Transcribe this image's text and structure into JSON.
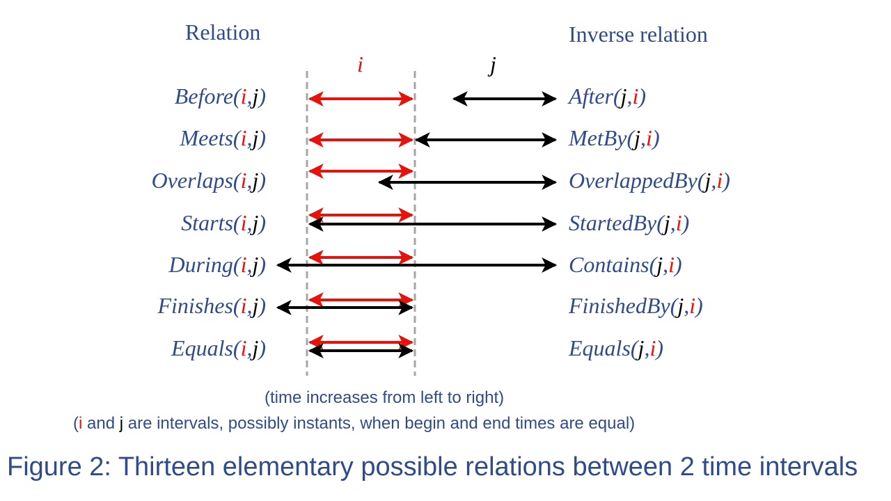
{
  "headers": {
    "relation": "Relation",
    "inverse": "Inverse relation"
  },
  "markers": {
    "i": "i",
    "j": "j"
  },
  "rows": [
    {
      "left_name": "Before",
      "right_name": "After"
    },
    {
      "left_name": "Meets",
      "right_name": "MetBy"
    },
    {
      "left_name": "Overlaps",
      "right_name": "OverlappedBy"
    },
    {
      "left_name": "Starts",
      "right_name": "StartedBy"
    },
    {
      "left_name": "During",
      "right_name": "Contains"
    },
    {
      "left_name": "Finishes",
      "right_name": "FinishedBy"
    },
    {
      "left_name": "Equals",
      "right_name": "Equals"
    }
  ],
  "notes": {
    "time_note": "(time increases from left to right)",
    "interval_note_prefix": "(",
    "interval_note_i": "i",
    "interval_note_and": " and ",
    "interval_note_j": "j",
    "interval_note_rest": " are intervals, possibly instants, when begin and end times are equal)"
  },
  "caption": "Figure 2: Thirteen elementary possible relations between 2 time intervals",
  "colors": {
    "i_interval": "#e8120c",
    "j_interval": "#000000",
    "text_blue": "#2f4b8a",
    "dashed_line": "#a6a6a6"
  }
}
